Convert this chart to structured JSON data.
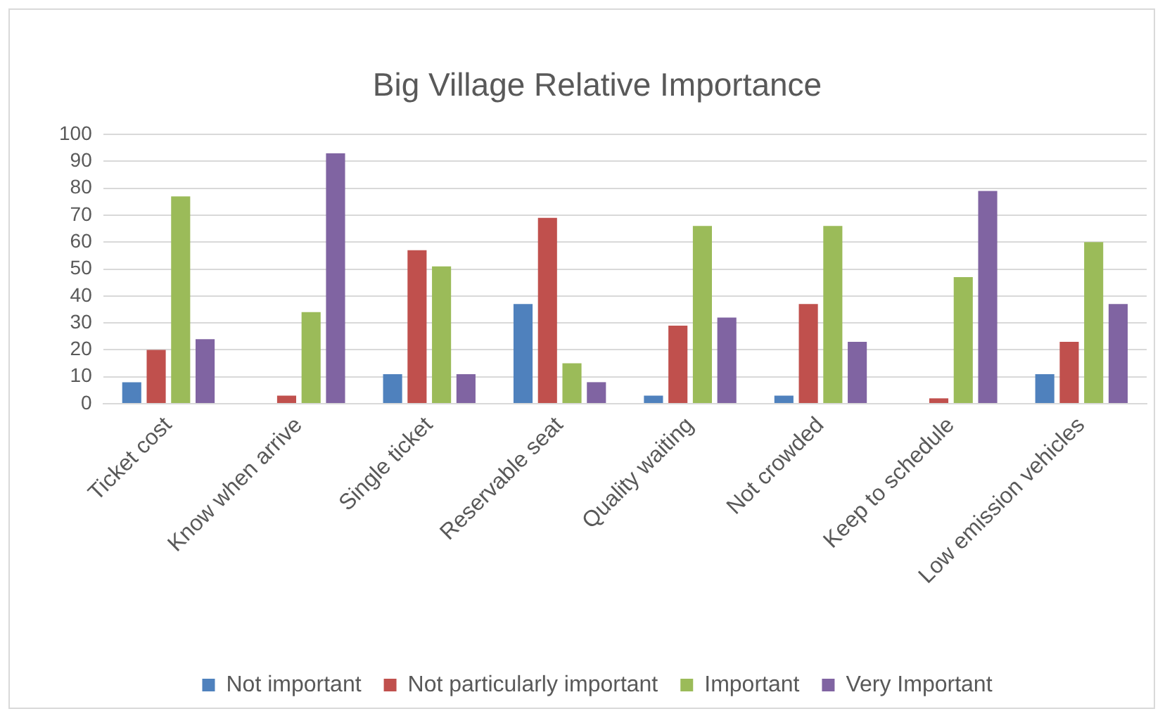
{
  "chart_data": {
    "type": "bar",
    "title": "Big Village Relative Importance",
    "categories": [
      "Ticket cost",
      "Know when arrive",
      "Single ticket",
      "Reservable seat",
      "Quality waiting",
      "Not crowded",
      "Keep to schedule",
      "Low emission vehicles"
    ],
    "series": [
      {
        "name": "Not important",
        "color": "#4f81bd",
        "values": [
          8,
          0,
          11,
          37,
          3,
          3,
          0,
          11
        ]
      },
      {
        "name": "Not particularly important",
        "color": "#c0504d",
        "values": [
          20,
          3,
          57,
          69,
          29,
          37,
          2,
          23
        ]
      },
      {
        "name": "Important",
        "color": "#9bbb59",
        "values": [
          77,
          34,
          51,
          15,
          66,
          66,
          47,
          60
        ]
      },
      {
        "name": "Very Important",
        "color": "#8064a2",
        "values": [
          24,
          93,
          11,
          8,
          32,
          23,
          79,
          37
        ]
      }
    ],
    "ylim": [
      0,
      100
    ],
    "yticks": [
      0,
      10,
      20,
      30,
      40,
      50,
      60,
      70,
      80,
      90,
      100
    ],
    "grid": "y",
    "legend": "bottom"
  }
}
